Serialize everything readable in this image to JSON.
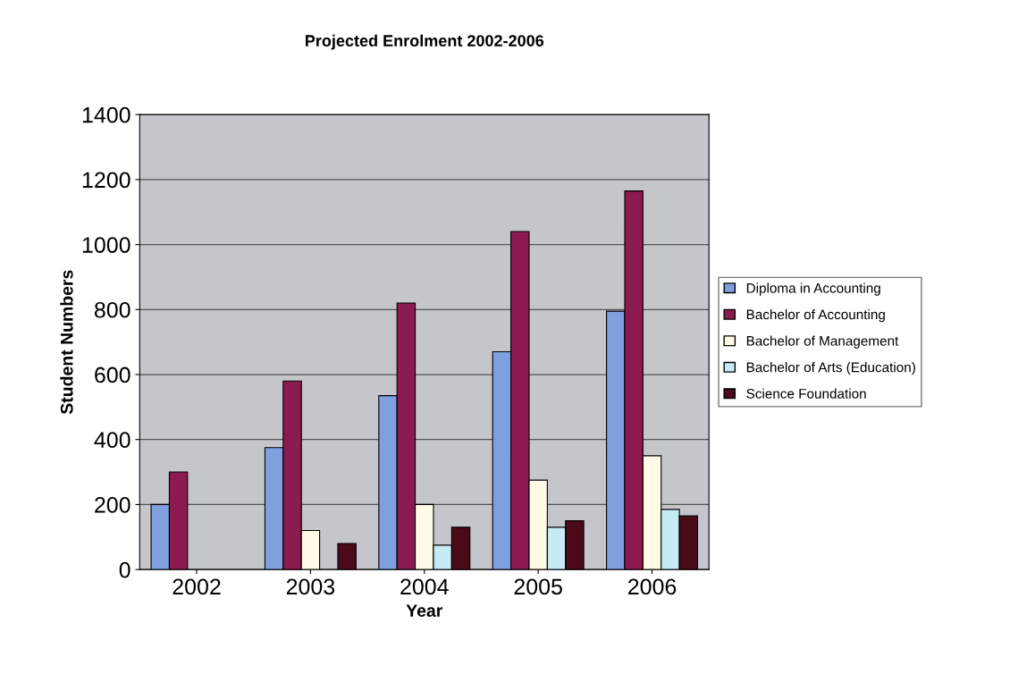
{
  "chart_data": {
    "type": "bar",
    "title": "Projected Enrolment 2002-2006",
    "xlabel": "Year",
    "ylabel": "Student Numbers",
    "categories": [
      "2002",
      "2003",
      "2004",
      "2005",
      "2006"
    ],
    "series": [
      {
        "name": "Diploma in Accounting",
        "color": "#7f9fdf",
        "values": [
          200,
          375,
          535,
          670,
          795
        ]
      },
      {
        "name": "Bachelor of Accounting",
        "color": "#8b1a4f",
        "values": [
          300,
          580,
          820,
          1040,
          1165
        ]
      },
      {
        "name": "Bachelor of Management",
        "color": "#fffbe6",
        "values": [
          null,
          120,
          200,
          275,
          350
        ]
      },
      {
        "name": "Bachelor of Arts (Education)",
        "color": "#c6ebf5",
        "values": [
          null,
          null,
          75,
          130,
          185
        ]
      },
      {
        "name": "Science Foundation",
        "color": "#4a0a1a",
        "values": [
          null,
          80,
          130,
          150,
          165
        ]
      }
    ],
    "ylim": [
      0,
      1400
    ],
    "yticks": [
      0,
      200,
      400,
      600,
      800,
      1000,
      1200,
      1400
    ],
    "grid": "y",
    "legend": "right"
  }
}
